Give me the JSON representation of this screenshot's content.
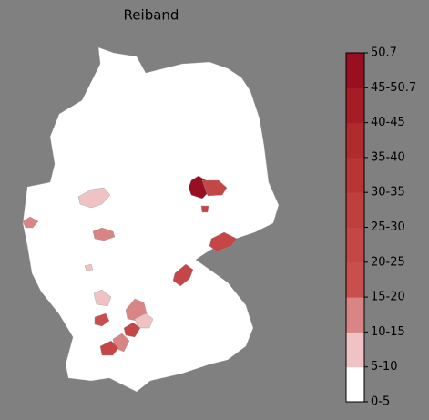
{
  "map": {
    "title": "Reiband",
    "colorbar": {
      "labels": [
        "0-5",
        "5-10",
        "10-15",
        "15-20",
        "20-25",
        "25-30",
        "30-35",
        "35-40",
        "40-45",
        "45-50.7",
        50.7
      ],
      "colors": [
        "#ffffff",
        "#efc3c3",
        "#da8585",
        "#c94e4e",
        "#c44646",
        "#bf3e3e",
        "#b93535",
        "#b02b2d",
        "#a51c27",
        "#990e20"
      ]
    }
  }
}
